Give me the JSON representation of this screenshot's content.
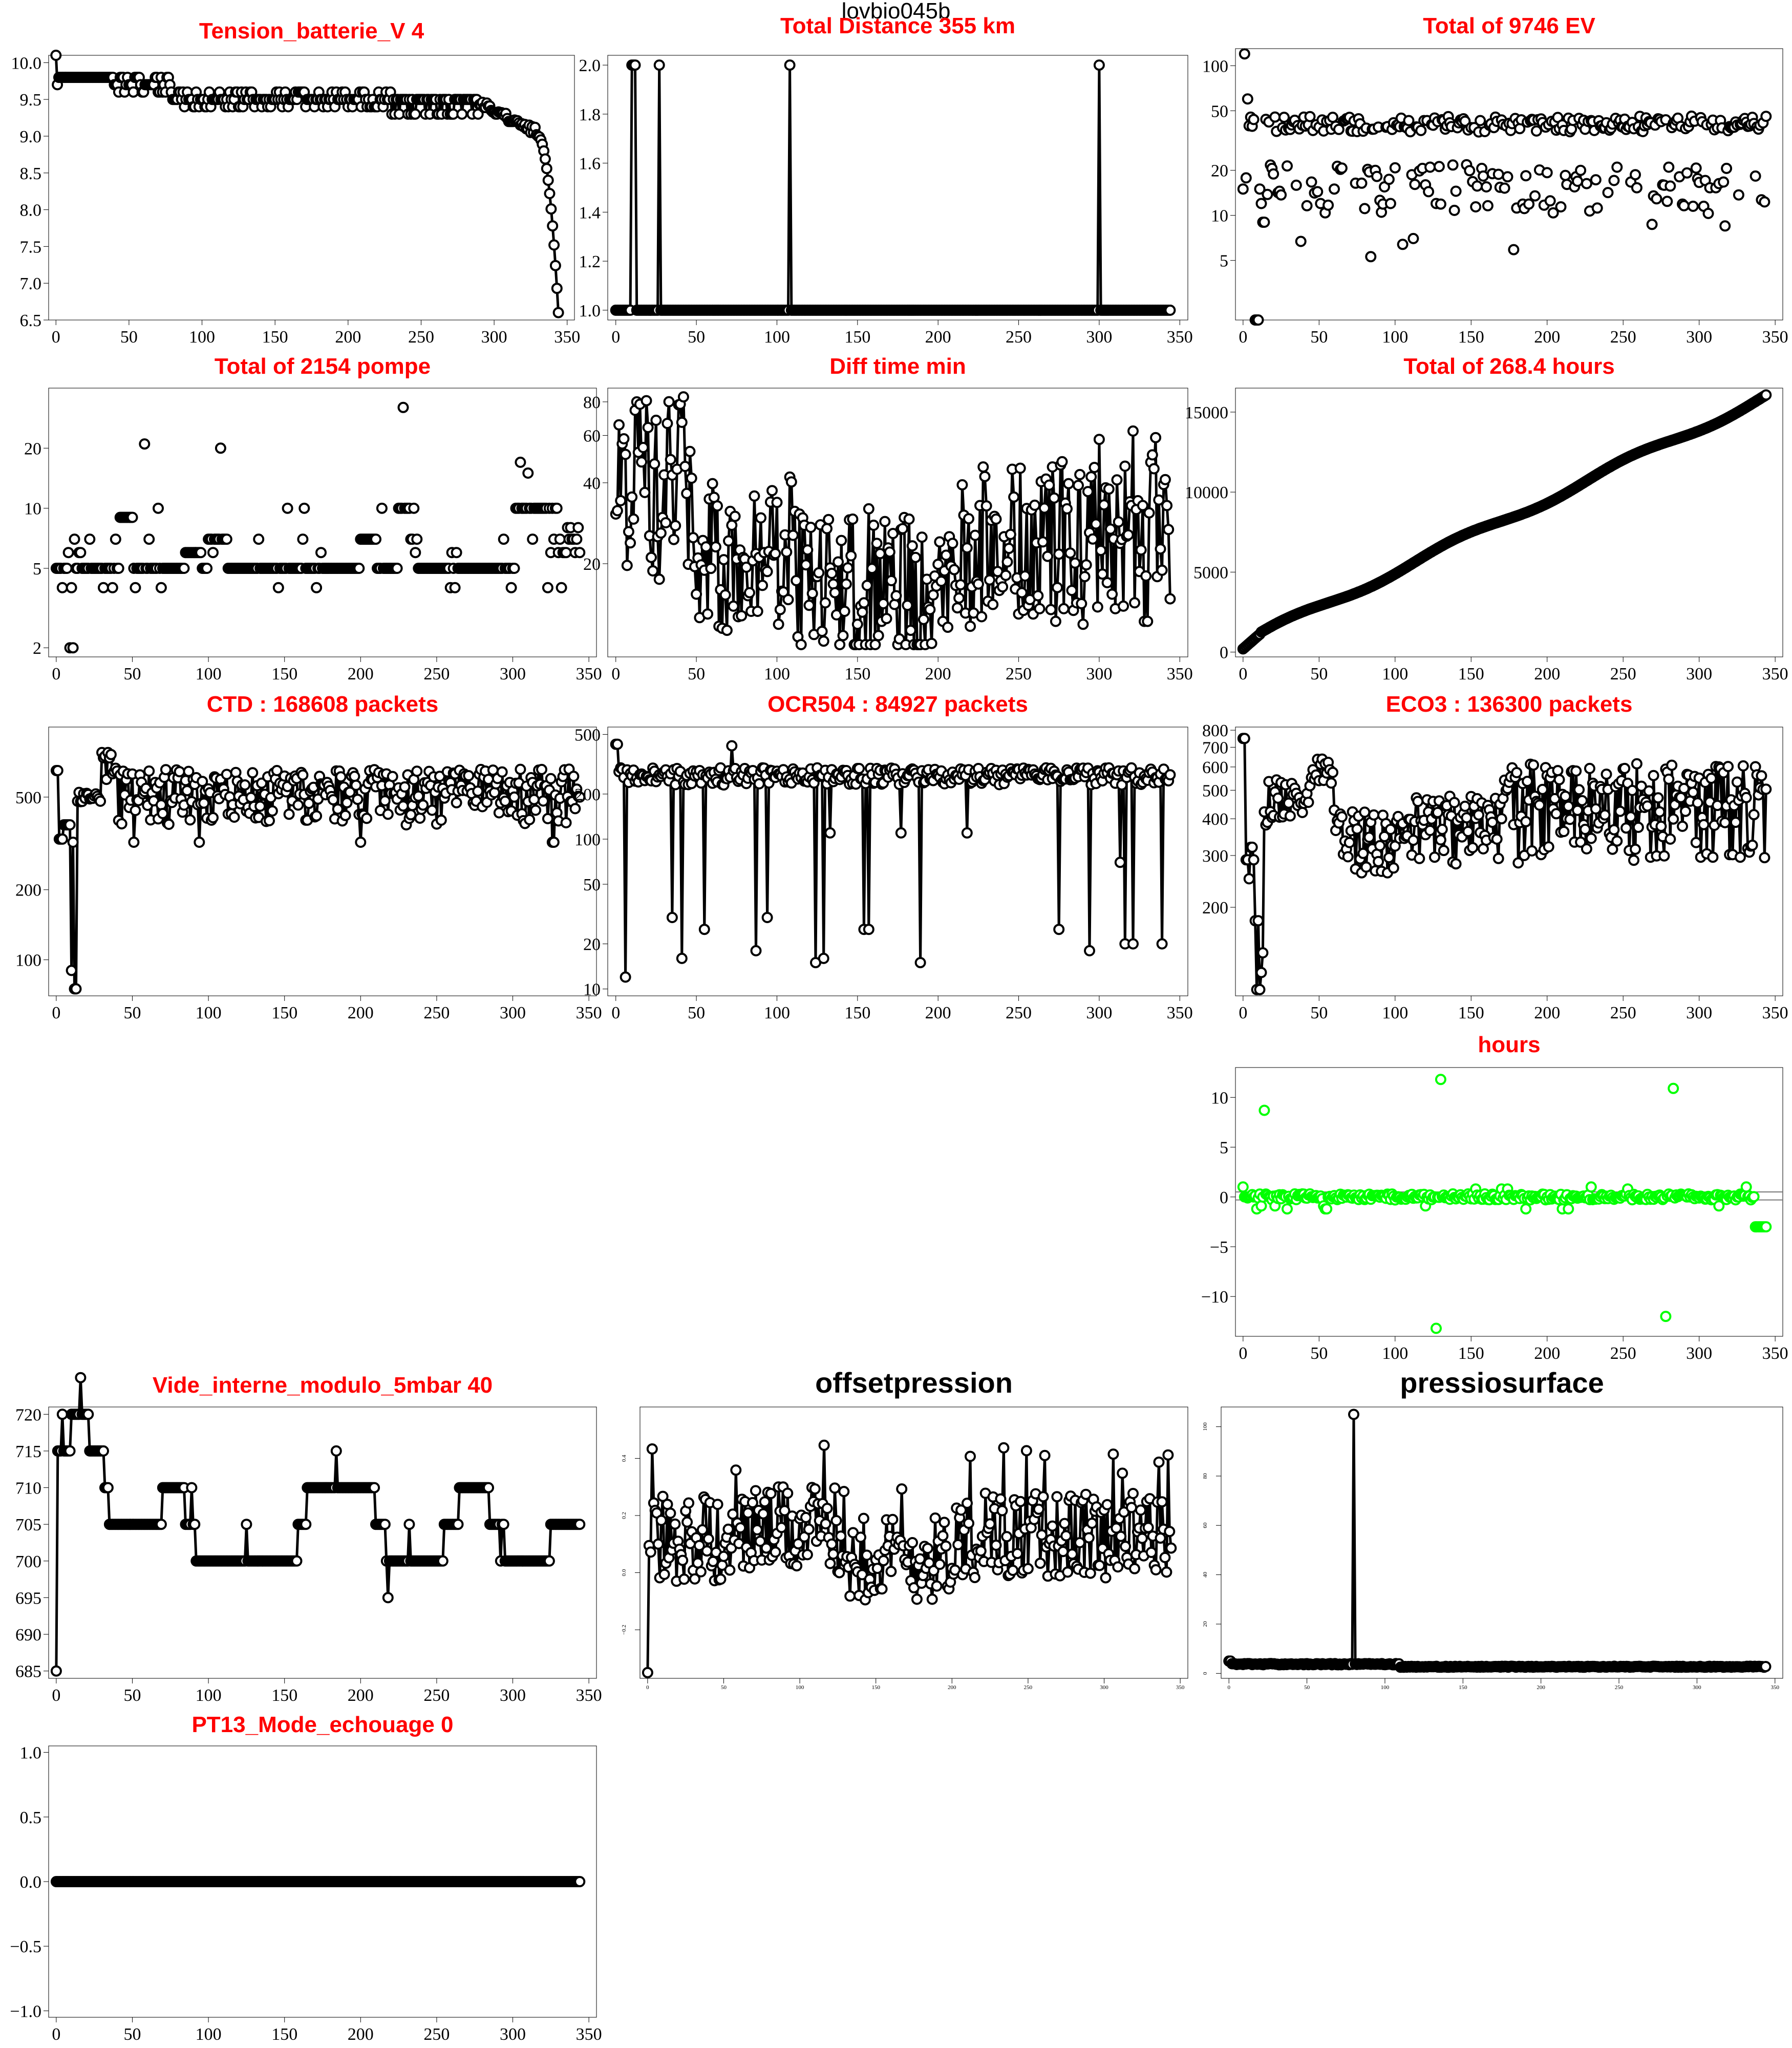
{
  "page": {
    "title": "lovbio045b"
  },
  "chart_data": [
    {
      "type": "line",
      "title": "Tension_batterie_V 4",
      "title_color": "#ff0000",
      "title_weight": "bold",
      "xlim": [
        -5,
        355
      ],
      "ylim": [
        6.5,
        10.1
      ],
      "scale": "linear",
      "xticks": [
        0,
        50,
        100,
        150,
        200,
        250,
        300,
        350
      ],
      "yticks": [
        6.5,
        7.0,
        7.5,
        8.0,
        8.5,
        9.0,
        9.5,
        10.0
      ],
      "ytick_labels": [
        "6.5",
        "7.0",
        "7.5",
        "8.0",
        "8.5",
        "9.0",
        "9.5",
        "10.0"
      ],
      "point_color": "#000000",
      "gen": "battery"
    },
    {
      "type": "line",
      "title": "Total Distance  355  km",
      "title_color": "#ff0000",
      "title_weight": "bold",
      "xlim": [
        -5,
        355
      ],
      "ylim": [
        0.96,
        2.04
      ],
      "scale": "linear",
      "xticks": [
        0,
        50,
        100,
        150,
        200,
        250,
        300,
        350
      ],
      "yticks": [
        1.0,
        1.2,
        1.4,
        1.6,
        1.8,
        2.0
      ],
      "ytick_labels": [
        "1.0",
        "1.2",
        "1.4",
        "1.6",
        "1.8",
        "2.0"
      ],
      "point_color": "#000000",
      "gen": "distance"
    },
    {
      "type": "scatter",
      "title": "Total of  9746  EV",
      "title_color": "#ff0000",
      "title_weight": "bold",
      "xlim": [
        -5,
        355
      ],
      "ylim": [
        2,
        130
      ],
      "scale": "log",
      "xticks": [
        0,
        50,
        100,
        150,
        200,
        250,
        300,
        350
      ],
      "yticks": [
        5,
        10,
        20,
        50,
        100
      ],
      "ytick_labels": [
        "5",
        "10",
        "20",
        "50",
        "100"
      ],
      "point_color": "#000000",
      "gen": "ev"
    },
    {
      "type": "scatter",
      "title": "Total of  2154  pompe",
      "title_color": "#ff0000",
      "title_weight": "bold",
      "xlim": [
        -5,
        355
      ],
      "ylim": [
        1.8,
        40
      ],
      "scale": "log",
      "xticks": [
        0,
        50,
        100,
        150,
        200,
        250,
        300,
        350
      ],
      "yticks": [
        2,
        5,
        10,
        20
      ],
      "ytick_labels": [
        "2",
        "5",
        "10",
        "20"
      ],
      "point_color": "#000000",
      "gen": "pompe"
    },
    {
      "type": "line",
      "title": "Diff time min",
      "title_color": "#ff0000",
      "title_weight": "bold",
      "xlim": [
        -5,
        355
      ],
      "ylim": [
        9,
        90
      ],
      "scale": "log",
      "xticks": [
        0,
        50,
        100,
        150,
        200,
        250,
        300,
        350
      ],
      "yticks": [
        20,
        40,
        60,
        80
      ],
      "ytick_labels": [
        "20",
        "40",
        "60",
        "80"
      ],
      "point_color": "#000000",
      "gen": "difftime"
    },
    {
      "type": "scatter",
      "title": "Total of  268.4  hours",
      "title_color": "#ff0000",
      "title_weight": "bold",
      "xlim": [
        -5,
        355
      ],
      "ylim": [
        -300,
        16500
      ],
      "scale": "linear",
      "xticks": [
        0,
        50,
        100,
        150,
        200,
        250,
        300,
        350
      ],
      "yticks": [
        0,
        5000,
        10000,
        15000
      ],
      "ytick_labels": [
        "0",
        "5000",
        "10000",
        "15000"
      ],
      "point_color": "#000000",
      "gen": "hours"
    },
    {
      "type": "line",
      "title": "CTD  : 168608  packets",
      "title_color": "#ff0000",
      "title_weight": "bold",
      "xlim": [
        -5,
        355
      ],
      "ylim": [
        70,
        1000
      ],
      "scale": "log",
      "xticks": [
        0,
        50,
        100,
        150,
        200,
        250,
        300,
        350
      ],
      "yticks": [
        100,
        200,
        500
      ],
      "ytick_labels": [
        "100",
        "200",
        "500"
      ],
      "point_color": "#000000",
      "gen": "ctd"
    },
    {
      "type": "line",
      "title": "OCR504  : 84927  packets",
      "title_color": "#ff0000",
      "title_weight": "bold",
      "xlim": [
        -5,
        355
      ],
      "ylim": [
        9,
        560
      ],
      "scale": "log",
      "xticks": [
        0,
        50,
        100,
        150,
        200,
        250,
        300,
        350
      ],
      "yticks": [
        10,
        20,
        50,
        100,
        200,
        500
      ],
      "ytick_labels": [
        "10",
        "20",
        "50",
        "100",
        "200",
        "500"
      ],
      "point_color": "#000000",
      "gen": "ocr"
    },
    {
      "type": "line",
      "title": "ECO3  : 136300  packets",
      "title_color": "#ff0000",
      "title_weight": "bold",
      "xlim": [
        -5,
        355
      ],
      "ylim": [
        100,
        820
      ],
      "scale": "log",
      "xticks": [
        0,
        50,
        100,
        150,
        200,
        250,
        300,
        350
      ],
      "yticks": [
        200,
        300,
        400,
        500,
        600,
        700,
        800
      ],
      "ytick_labels": [
        "200",
        "300",
        "400",
        "500",
        "600",
        "700",
        "800"
      ],
      "point_color": "#000000",
      "gen": "eco"
    },
    {
      "type": "scatter",
      "title": "hours",
      "title_color": "#ff0000",
      "title_weight": "bold",
      "xlim": [
        -5,
        355
      ],
      "ylim": [
        -14,
        13
      ],
      "scale": "linear",
      "xticks": [
        0,
        50,
        100,
        150,
        200,
        250,
        300,
        350
      ],
      "yticks": [
        -10,
        -5,
        0,
        5,
        10
      ],
      "ytick_labels": [
        "−10",
        "−5",
        "0",
        "5",
        "10"
      ],
      "point_color": "#00ff00",
      "hlines": [
        0.5,
        -0.3
      ],
      "gen": "hoursdiff"
    },
    {
      "type": "line",
      "title": "Vide_interne_modulo_5mbar 40",
      "title_color": "#ff0000",
      "title_weight": "bold",
      "xlim": [
        -5,
        355
      ],
      "ylim": [
        684,
        721
      ],
      "scale": "linear",
      "xticks": [
        0,
        50,
        100,
        150,
        200,
        250,
        300,
        350
      ],
      "yticks": [
        685,
        690,
        695,
        700,
        705,
        710,
        715,
        720
      ],
      "ytick_labels": [
        "685",
        "690",
        "695",
        "700",
        "705",
        "710",
        "715",
        "720"
      ],
      "point_color": "#000000",
      "gen": "vide"
    },
    {
      "type": "line",
      "title": "offsetpression",
      "title_color": "#000000",
      "title_weight": "bold",
      "xlim": [
        -5,
        355
      ],
      "ylim": [
        -0.37,
        0.58
      ],
      "scale": "linear",
      "xticks": [
        0,
        50,
        100,
        150,
        200,
        250,
        300,
        350
      ],
      "yticks": [
        -0.2,
        0.0,
        0.2,
        0.4
      ],
      "ytick_labels": [
        "−0.2",
        "0.0",
        "0.2",
        "0.4"
      ],
      "point_color": "#000000",
      "small_ticks": true,
      "gen": "offset"
    },
    {
      "type": "line",
      "title": "pressiosurface",
      "title_color": "#000000",
      "title_weight": "bold",
      "xlim": [
        -5,
        355
      ],
      "ylim": [
        -2,
        108
      ],
      "scale": "linear",
      "xticks": [
        0,
        50,
        100,
        150,
        200,
        250,
        300,
        350
      ],
      "yticks": [
        0,
        20,
        40,
        60,
        80,
        100
      ],
      "ytick_labels": [
        "0",
        "20",
        "40",
        "60",
        "80",
        "100"
      ],
      "point_color": "#000000",
      "small_ticks": true,
      "gen": "pressio"
    },
    {
      "type": "line",
      "title": "PT13_Mode_echouage  0",
      "title_color": "#ff0000",
      "title_weight": "bold",
      "xlim": [
        -5,
        355
      ],
      "ylim": [
        -1.05,
        1.05
      ],
      "scale": "linear",
      "xticks": [
        0,
        50,
        100,
        150,
        200,
        250,
        300,
        350
      ],
      "yticks": [
        -1.0,
        -0.5,
        0.0,
        0.5,
        1.0
      ],
      "ytick_labels": [
        "−1.0",
        "−0.5",
        "0.0",
        "0.5",
        "1.0"
      ],
      "point_color": "#000000",
      "gen": "zero"
    }
  ]
}
